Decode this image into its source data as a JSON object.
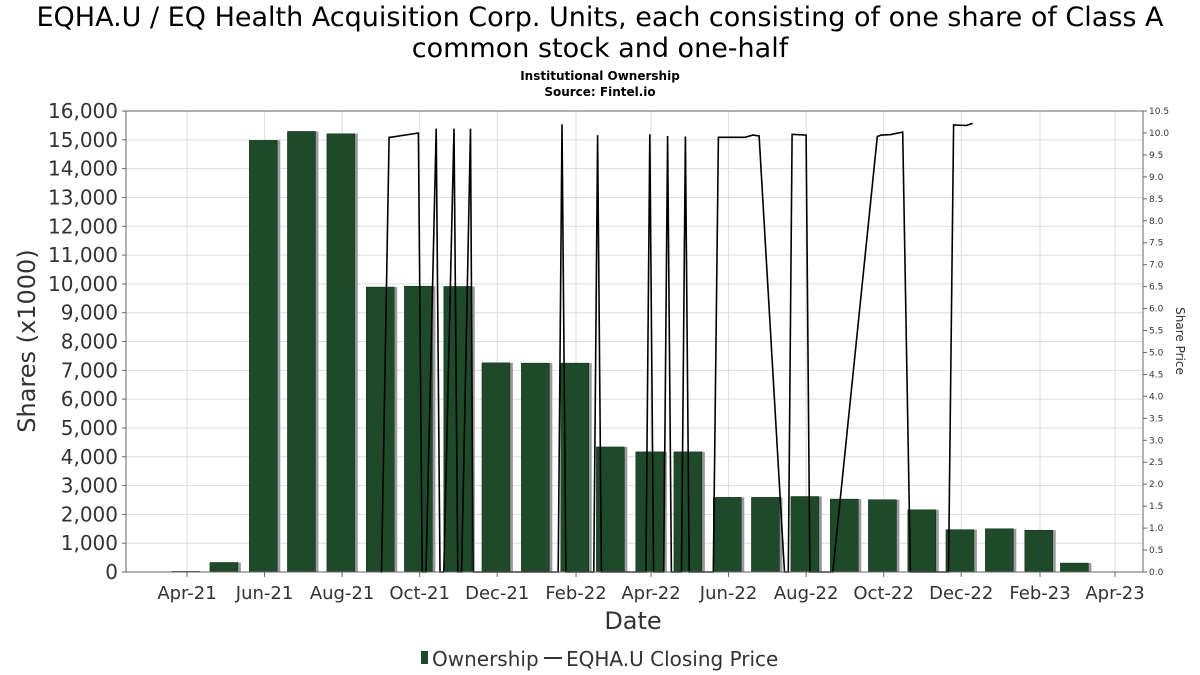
{
  "title": "EQHA.U / EQ Health Acquisition Corp. Units, each consisting of one share of Class A common stock and one-half",
  "subtitle_line1": "Institutional Ownership",
  "subtitle_line2": "Source: Fintel.io",
  "colors": {
    "bar": "#1e4a2a",
    "bar_shadow": "#9a9a9a",
    "line": "#000000",
    "grid": "#dddddd",
    "axis": "#666666"
  },
  "chart_data": {
    "type": "bar",
    "xlabel": "Date",
    "ylabel": "Shares (x1000)",
    "y2label": "Share Price",
    "ylim": [
      0,
      16000
    ],
    "y2lim": [
      0,
      10.5
    ],
    "xlim": [
      "2021-02-12",
      "2023-04-23"
    ],
    "grid": true,
    "legend_position": "bottom",
    "x_ticks": [
      {
        "date": "2021-04-01",
        "label": "Apr-21"
      },
      {
        "date": "2021-06-01",
        "label": "Jun-21"
      },
      {
        "date": "2021-08-01",
        "label": "Aug-21"
      },
      {
        "date": "2021-10-01",
        "label": "Oct-21"
      },
      {
        "date": "2021-12-01",
        "label": "Dec-21"
      },
      {
        "date": "2022-02-01",
        "label": "Feb-22"
      },
      {
        "date": "2022-04-01",
        "label": "Apr-22"
      },
      {
        "date": "2022-06-01",
        "label": "Jun-22"
      },
      {
        "date": "2022-08-01",
        "label": "Aug-22"
      },
      {
        "date": "2022-10-01",
        "label": "Oct-22"
      },
      {
        "date": "2022-12-01",
        "label": "Dec-22"
      },
      {
        "date": "2023-02-01",
        "label": "Feb-23"
      },
      {
        "date": "2023-04-01",
        "label": "Apr-23"
      }
    ],
    "y_ticks": [
      {
        "value": 0,
        "label": "0"
      },
      {
        "value": 1000,
        "label": "1,000"
      },
      {
        "value": 2000,
        "label": "2,000"
      },
      {
        "value": 3000,
        "label": "3,000"
      },
      {
        "value": 4000,
        "label": "4,000"
      },
      {
        "value": 5000,
        "label": "5,000"
      },
      {
        "value": 6000,
        "label": "6,000"
      },
      {
        "value": 7000,
        "label": "7,000"
      },
      {
        "value": 8000,
        "label": "8,000"
      },
      {
        "value": 9000,
        "label": "9,000"
      },
      {
        "value": 10000,
        "label": "10,000"
      },
      {
        "value": 11000,
        "label": "11,000"
      },
      {
        "value": 12000,
        "label": "12,000"
      },
      {
        "value": 13000,
        "label": "13,000"
      },
      {
        "value": 14000,
        "label": "14,000"
      },
      {
        "value": 15000,
        "label": "15,000"
      },
      {
        "value": 16000,
        "label": "16,000"
      }
    ],
    "y2_ticks": [
      {
        "value": 0.0,
        "label": "0.0"
      },
      {
        "value": 0.5,
        "label": "0.5"
      },
      {
        "value": 1.0,
        "label": "1.0"
      },
      {
        "value": 1.5,
        "label": "1.5"
      },
      {
        "value": 2.0,
        "label": "2.0"
      },
      {
        "value": 2.5,
        "label": "2.5"
      },
      {
        "value": 3.0,
        "label": "3.0"
      },
      {
        "value": 3.5,
        "label": "3.5"
      },
      {
        "value": 4.0,
        "label": "4.0"
      },
      {
        "value": 4.5,
        "label": "4.5"
      },
      {
        "value": 5.0,
        "label": "5.0"
      },
      {
        "value": 5.5,
        "label": "5.5"
      },
      {
        "value": 6.0,
        "label": "6.0"
      },
      {
        "value": 6.5,
        "label": "6.5"
      },
      {
        "value": 7.0,
        "label": "7.0"
      },
      {
        "value": 7.5,
        "label": "7.5"
      },
      {
        "value": 8.0,
        "label": "8.0"
      },
      {
        "value": 8.5,
        "label": "8.5"
      },
      {
        "value": 9.0,
        "label": "9.0"
      },
      {
        "value": 9.5,
        "label": "9.5"
      },
      {
        "value": 10.0,
        "label": "10.0"
      },
      {
        "value": 10.5,
        "label": "10.5"
      }
    ],
    "series": [
      {
        "name": "Ownership",
        "type": "bar",
        "x": [
          "2021-03-31",
          "2021-04-30",
          "2021-05-31",
          "2021-06-30",
          "2021-07-31",
          "2021-08-31",
          "2021-09-30",
          "2021-10-31",
          "2021-11-30",
          "2021-12-31",
          "2022-01-31",
          "2022-02-28",
          "2022-03-31",
          "2022-04-30",
          "2022-05-31",
          "2022-06-30",
          "2022-07-31",
          "2022-08-31",
          "2022-09-30",
          "2022-10-31",
          "2022-11-30",
          "2022-12-31",
          "2023-01-31",
          "2023-02-28",
          "2023-03-31"
        ],
        "values": [
          20,
          330,
          14980,
          15290,
          15210,
          9890,
          9920,
          9910,
          7260,
          7250,
          7250,
          4340,
          4170,
          4170,
          2590,
          2590,
          2620,
          2530,
          2510,
          2160,
          1470,
          1500,
          1450,
          310,
          0
        ]
      },
      {
        "name": "EQHA.U Closing Price",
        "type": "line",
        "x": [
          "2021-08-31",
          "2021-09-01",
          "2021-09-07",
          "2021-09-08",
          "2021-09-30",
          "2021-10-03",
          "2021-10-06",
          "2021-10-14",
          "2021-10-17",
          "2021-10-20",
          "2021-10-28",
          "2021-10-31",
          "2021-11-03",
          "2021-11-10",
          "2021-11-12",
          "2021-11-14",
          "2022-01-18",
          "2022-01-21",
          "2022-01-24",
          "2022-02-15",
          "2022-02-18",
          "2022-02-21",
          "2022-03-28",
          "2022-03-31",
          "2022-04-03",
          "2022-04-11",
          "2022-04-14",
          "2022-04-17",
          "2022-04-25",
          "2022-04-28",
          "2022-05-01",
          "2022-05-20",
          "2022-05-24",
          "2022-06-14",
          "2022-06-20",
          "2022-06-25",
          "2022-07-15",
          "2022-07-18",
          "2022-07-21",
          "2022-08-01",
          "2022-08-04",
          "2022-08-22",
          "2022-09-26",
          "2022-09-29",
          "2022-10-06",
          "2022-10-16",
          "2022-10-22",
          "2022-11-21",
          "2022-11-25",
          "2022-12-05",
          "2022-12-10"
        ],
        "values": [
          0,
          0,
          9.9,
          9.9,
          10.0,
          0,
          0,
          10.1,
          0,
          0,
          10.1,
          0,
          0,
          10.1,
          0,
          0,
          0,
          10.2,
          0,
          0,
          9.95,
          0,
          0,
          9.97,
          0,
          0,
          9.93,
          0,
          0,
          9.92,
          0,
          0,
          9.9,
          9.9,
          9.95,
          9.93,
          0,
          0,
          9.97,
          9.95,
          0,
          0,
          9.92,
          9.95,
          9.96,
          10.02,
          0,
          0,
          10.18,
          10.17,
          10.22
        ]
      }
    ]
  },
  "legend": {
    "ownership_label": "Ownership",
    "price_label": "EQHA.U Closing Price"
  }
}
